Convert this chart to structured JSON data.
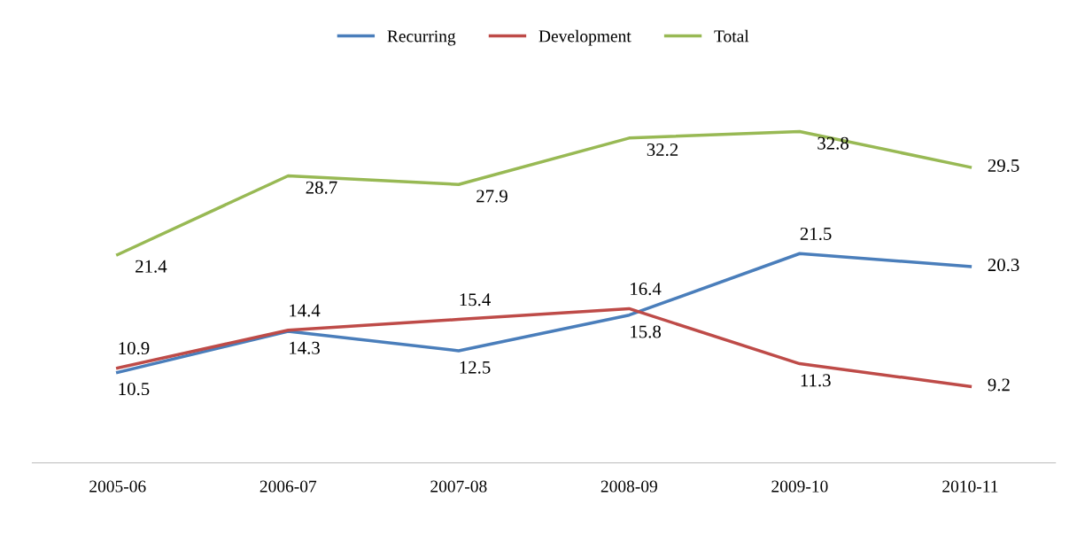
{
  "chart_data": {
    "type": "line",
    "categories": [
      "2005-06",
      "2006-07",
      "2007-08",
      "2008-09",
      "2009-10",
      "2010-11"
    ],
    "series": [
      {
        "name": "Recurring",
        "color": "#4a7ebb",
        "values": [
          10.5,
          14.3,
          12.5,
          15.8,
          21.5,
          20.3
        ]
      },
      {
        "name": "Development",
        "color": "#be4b48",
        "values": [
          10.9,
          14.4,
          15.4,
          16.4,
          11.3,
          9.2
        ]
      },
      {
        "name": "Total",
        "color": "#98b954",
        "values": [
          21.4,
          28.7,
          27.9,
          32.2,
          32.8,
          29.5
        ]
      }
    ],
    "data_labels": true,
    "legend": "top",
    "grid": false,
    "marker": "none",
    "line_style": "solid"
  }
}
